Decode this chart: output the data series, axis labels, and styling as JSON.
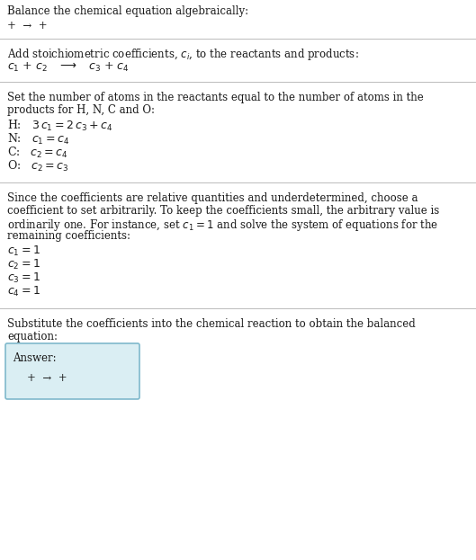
{
  "title": "Balance the chemical equation algebraically:",
  "line1": "+  →  +",
  "section1_title": "Add stoichiometric coefficients, $c_i$, to the reactants and products:",
  "section2_title_l1": "Set the number of atoms in the reactants equal to the number of atoms in the",
  "section2_title_l2": "products for H, N, C and O:",
  "section3_title_l1": "Since the coefficients are relative quantities and underdetermined, choose a",
  "section3_title_l2": "coefficient to set arbitrarily. To keep the coefficients small, the arbitrary value is",
  "section3_title_l3": "ordinarily one. For instance, set $c_1 = 1$ and solve the system of equations for the",
  "section3_title_l4": "remaining coefficients:",
  "section4_title_l1": "Substitute the coefficients into the chemical reaction to obtain the balanced",
  "section4_title_l2": "equation:",
  "answer_label": "Answer:",
  "bg_color": "#ffffff",
  "text_color": "#1a1a1a",
  "line_color": "#bbbbbb",
  "box_fill": "#daeef3",
  "box_edge": "#7fb9cc",
  "fs_text": 8.5,
  "fs_math": 9.0
}
